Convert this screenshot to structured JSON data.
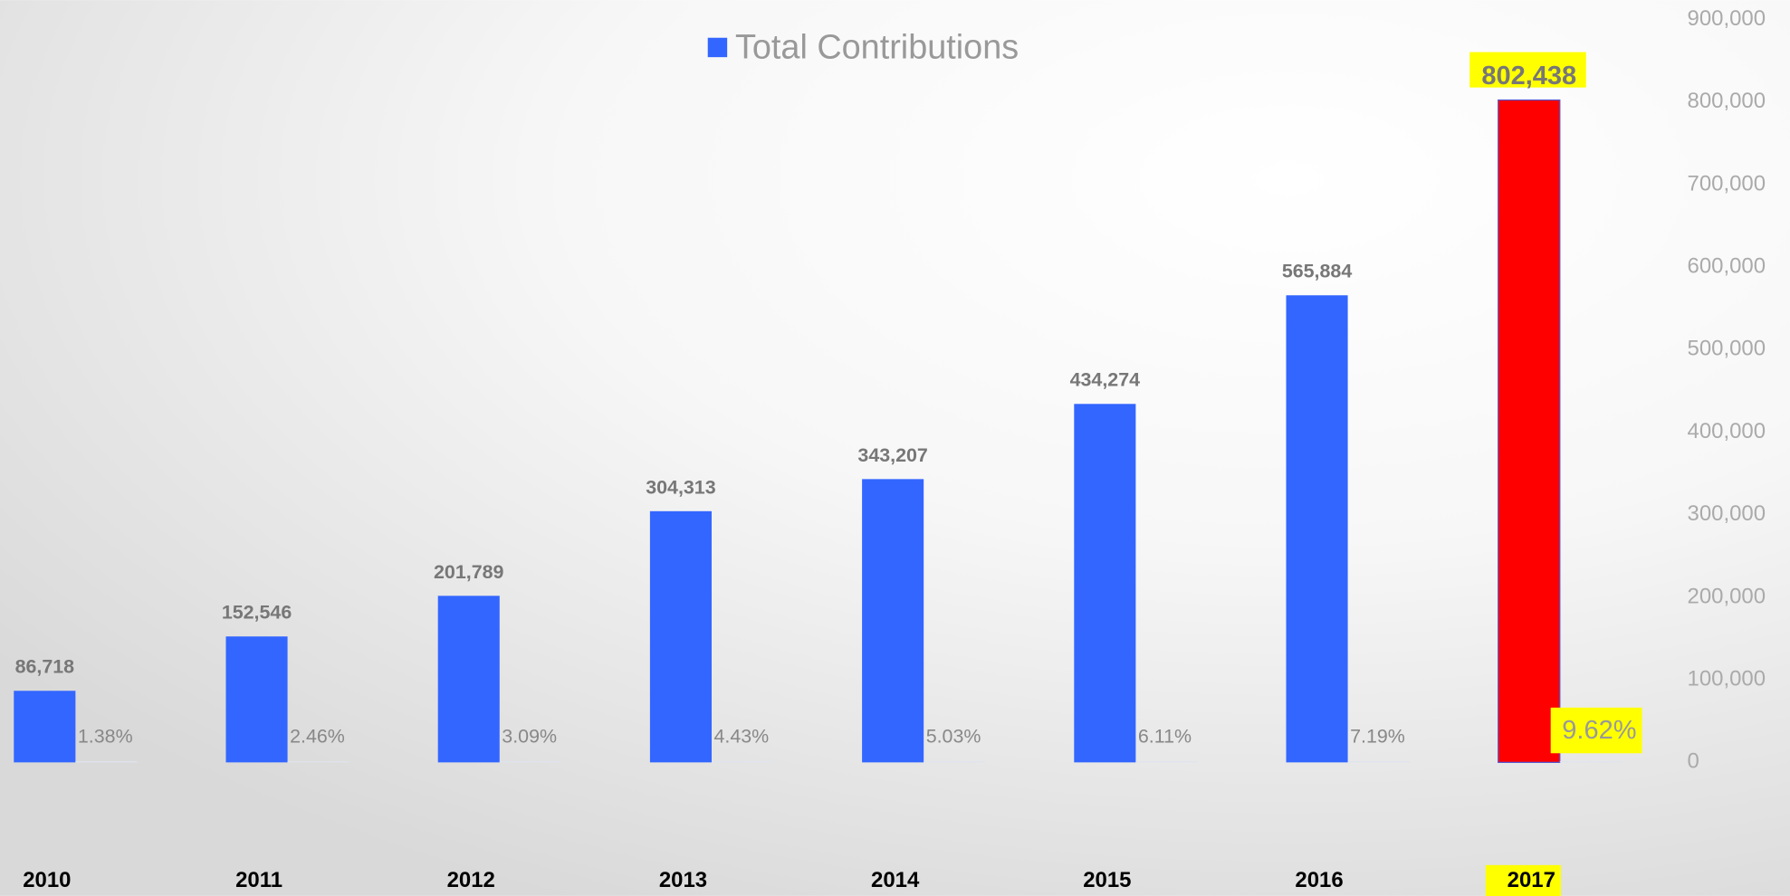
{
  "chart_data": {
    "type": "bar",
    "categories": [
      "2010",
      "2011",
      "2012",
      "2013",
      "2014",
      "2015",
      "2016",
      "2017"
    ],
    "series": [
      {
        "name": "Total Contributions",
        "color": "#3366ff",
        "colors": [
          "#3366ff",
          "#3366ff",
          "#3366ff",
          "#3366ff",
          "#3366ff",
          "#3366ff",
          "#3366ff",
          "#ff0000"
        ],
        "values": [
          86718,
          152546,
          201789,
          304313,
          343207,
          434274,
          565884,
          802438
        ],
        "value_labels": [
          "86,718",
          "152,546",
          "201,789",
          "304,313",
          "343,207",
          "434,274",
          "565,884",
          "802,438"
        ]
      },
      {
        "color": "#dde3ee",
        "values": [
          1.38,
          2.46,
          3.09,
          4.43,
          5.03,
          6.11,
          7.19,
          9.62
        ],
        "value_labels": [
          "1.38%",
          "2.46%",
          "3.09%",
          "4.43%",
          "5.03%",
          "6.11%",
          "7.19%",
          "9.62%"
        ]
      }
    ],
    "label_backgrounds": [
      null,
      null,
      null,
      null,
      null,
      null,
      null,
      "#ffff00"
    ],
    "ylim": [
      0,
      900000
    ],
    "yticks": [
      0,
      {
        "value": 100000,
        "label": "100,000"
      },
      {
        "value": 200000,
        "label": "200,000"
      },
      {
        "value": 300000,
        "label": "300,000"
      },
      {
        "value": 400000,
        "label": "400,000"
      },
      {
        "value": 500000,
        "label": "500,000"
      },
      {
        "value": 600000,
        "label": "600,000"
      },
      {
        "value": 700000,
        "label": "700,000"
      },
      {
        "value": 800000,
        "label": "800,000"
      },
      {
        "value": 900000,
        "label": "900,000"
      }
    ],
    "grid": false,
    "legend": "top"
  }
}
